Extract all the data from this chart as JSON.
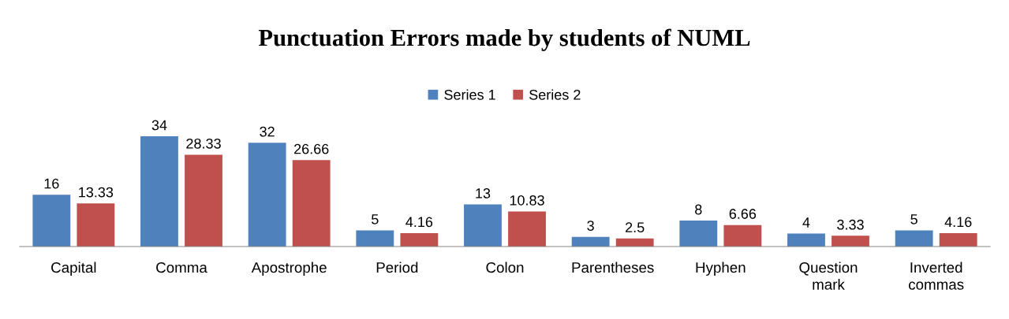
{
  "chart_data": {
    "type": "bar",
    "title": "Punctuation Errors made by students of NUML",
    "categories": [
      "Capital",
      "Comma",
      "Apostrophe",
      "Period",
      "Colon",
      "Parentheses",
      "Hyphen",
      "Question\nmark",
      "Inverted\ncommas"
    ],
    "series": [
      {
        "name": "Series 1",
        "color": "#4f81bd",
        "values": [
          16,
          34,
          32,
          5,
          13,
          3,
          8,
          4,
          5
        ]
      },
      {
        "name": "Series 2",
        "color": "#c0504d",
        "values": [
          13.33,
          28.33,
          26.66,
          4.16,
          10.83,
          2.5,
          6.66,
          3.33,
          4.16
        ]
      }
    ],
    "data_labels": true,
    "legend": "top",
    "grid": false,
    "tick_labels": "x"
  }
}
